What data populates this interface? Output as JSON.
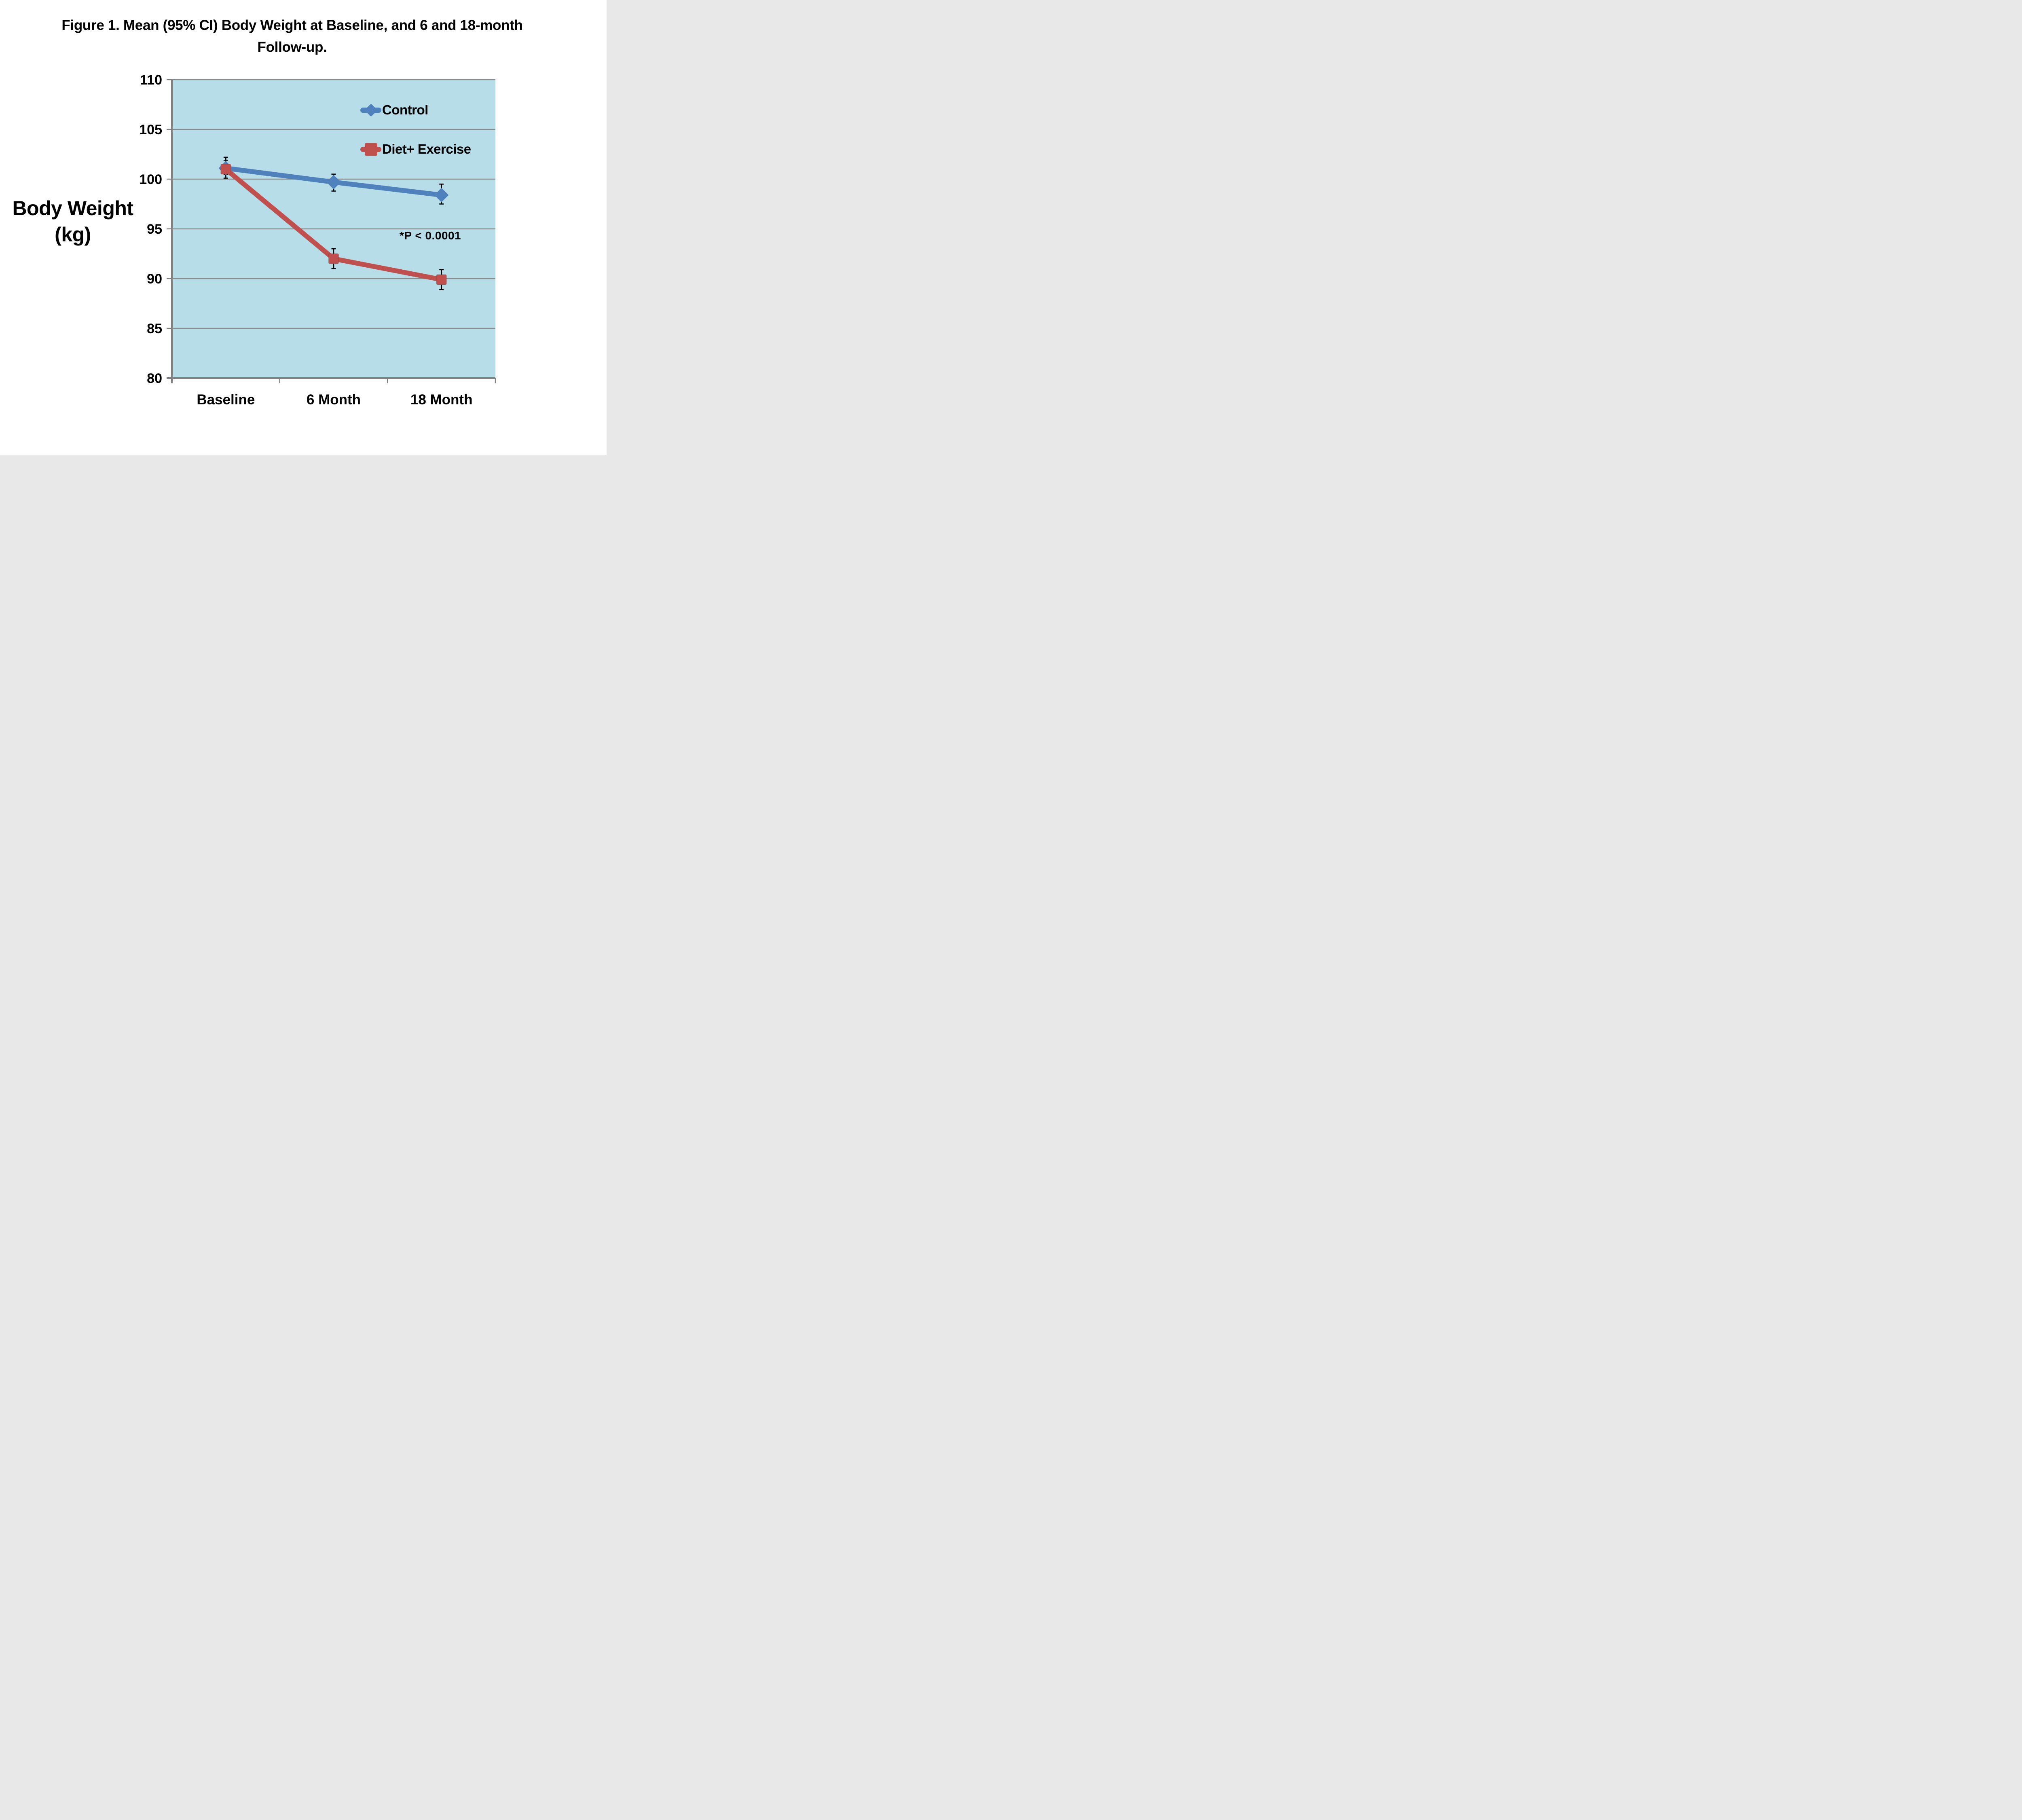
{
  "header": {
    "title_line1": "Figure 1. Mean (95% CI) Body Weight at Baseline, and 6 and 18-month",
    "title_line2": "Follow-up."
  },
  "axes": {
    "y_title_line1": "Body Weight",
    "y_title_line2": "(kg)"
  },
  "chart_data": {
    "type": "line",
    "title": "Figure 1. Mean (95% CI) Body Weight at Baseline, and 6 and 18-month Follow-up.",
    "categories": [
      "Baseline",
      "6 Month",
      "18 Month"
    ],
    "xlabel": "",
    "ylabel": "Body Weight (kg)",
    "ylim": [
      80,
      110
    ],
    "yticks": [
      110,
      105,
      100,
      95,
      90,
      85,
      80
    ],
    "ytick_step": 5,
    "grid": true,
    "legend_position": "inside-top-right",
    "plot_bg": "#B7DEE8",
    "gridline_color": "#8C8C8C",
    "axis_color": "#808080",
    "error_bar_color": "#000000",
    "annotation": "*P < 0.0001",
    "series": [
      {
        "name": "Control",
        "color": "#4F81BD",
        "marker": "diamond",
        "values": [
          101.1,
          99.7,
          98.4
        ],
        "ci_low": [
          100.5,
          98.8,
          97.5
        ],
        "ci_high": [
          102.2,
          100.5,
          99.5
        ]
      },
      {
        "name": "Diet+ Exercise",
        "color": "#C0504D",
        "marker": "square",
        "values": [
          101.0,
          92.0,
          89.9
        ],
        "ci_low": [
          100.1,
          91.0,
          88.9
        ],
        "ci_high": [
          101.9,
          93.0,
          90.9
        ]
      }
    ]
  }
}
